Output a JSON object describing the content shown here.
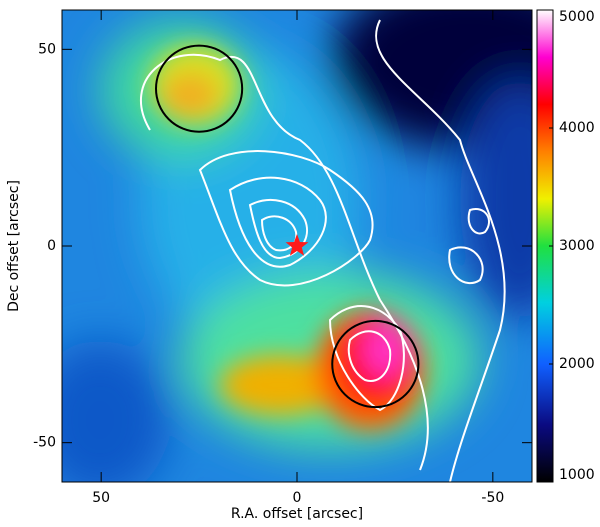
{
  "chart_data": {
    "type": "image",
    "xlabel": "R.A. offset [arcsec]",
    "ylabel": "Dec offset [arcsec]",
    "xlim": [
      60,
      -60
    ],
    "ylim": [
      -60,
      60
    ],
    "xticks": [
      50,
      0,
      -50
    ],
    "yticks": [
      -50,
      0,
      50
    ],
    "colorbar": {
      "lim": [
        1000,
        5000
      ],
      "ticks": [
        1000,
        2000,
        3000,
        4000,
        5000
      ]
    },
    "circles": [
      {
        "x": 25,
        "y": 40,
        "r": 11,
        "color": "#000000"
      },
      {
        "x": -20,
        "y": -30,
        "r": 11,
        "color": "#000000"
      }
    ],
    "star": {
      "x": 0,
      "y": 0,
      "color": "#ff1a1a"
    }
  }
}
